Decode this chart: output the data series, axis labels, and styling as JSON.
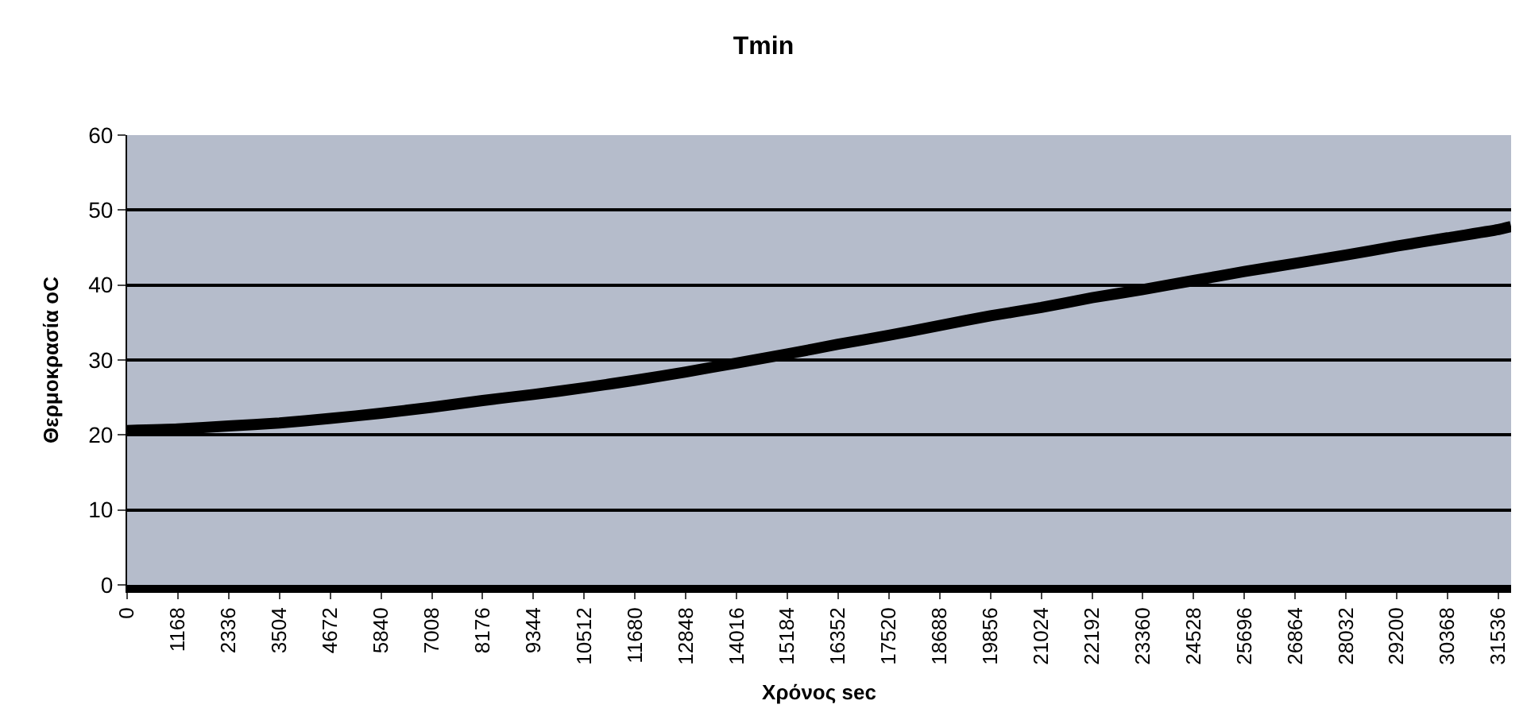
{
  "chart_data": {
    "type": "line",
    "title": "Tmin",
    "xlabel": "Χρόνος sec",
    "ylabel": "Θερμοκρασία oC",
    "x": [
      0,
      1168,
      2336,
      3504,
      4672,
      5840,
      7008,
      8176,
      9344,
      10512,
      11680,
      12848,
      14016,
      15184,
      16352,
      17520,
      18688,
      19856,
      21024,
      22192,
      23360,
      24528,
      25696,
      26864,
      28032,
      29200,
      30368,
      31536,
      31830
    ],
    "series": [
      {
        "color": "#000000",
        "values": [
          20.6,
          20.8,
          21.2,
          21.6,
          22.2,
          22.9,
          23.7,
          24.6,
          25.4,
          26.3,
          27.3,
          28.4,
          29.6,
          30.8,
          32.1,
          33.3,
          34.6,
          35.9,
          37.0,
          38.3,
          39.4,
          40.6,
          41.8,
          42.9,
          44.0,
          45.2,
          46.3,
          47.4,
          47.8
        ]
      }
    ],
    "xlim": [
      0,
      31830
    ],
    "xticks": [
      0,
      1168,
      2336,
      3504,
      4672,
      5840,
      7008,
      8176,
      9344,
      10512,
      11680,
      12848,
      14016,
      15184,
      16352,
      17520,
      18688,
      19856,
      21024,
      22192,
      23360,
      24528,
      25696,
      26864,
      28032,
      29200,
      30368,
      31536
    ],
    "ylim": [
      0,
      60
    ],
    "yticks": [
      0,
      10,
      20,
      30,
      40,
      50,
      60
    ],
    "grid": "y",
    "marker": "none",
    "line_style": "solid"
  }
}
